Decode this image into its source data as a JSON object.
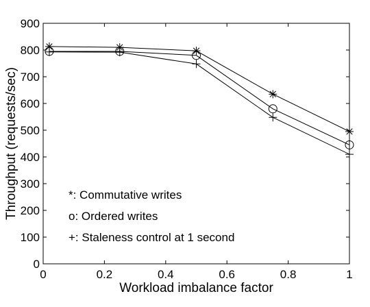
{
  "chart_data": {
    "type": "line",
    "title": "",
    "xlabel": "Workload imbalance factor",
    "ylabel": "Throughput (requests/sec)",
    "xlim": [
      0,
      1
    ],
    "ylim": [
      0,
      900
    ],
    "xticks": [
      0,
      0.2,
      0.4,
      0.6,
      0.8,
      1
    ],
    "xtick_labels": [
      "0",
      "0.2",
      "0.4",
      "0.6",
      "0.8",
      "1"
    ],
    "yticks": [
      0,
      100,
      200,
      300,
      400,
      500,
      600,
      700,
      800,
      900
    ],
    "ytick_labels": [
      "0",
      "100",
      "200",
      "300",
      "400",
      "500",
      "600",
      "700",
      "800",
      "900"
    ],
    "grid": false,
    "legend_placement": "lower-left",
    "line_color": "#000000",
    "series": [
      {
        "name": "Commutative writes",
        "marker": "*",
        "legend": "*: Commutative writes",
        "x": [
          0.02,
          0.25,
          0.5,
          0.75,
          1.0
        ],
        "y": [
          813,
          810,
          797,
          635,
          495
        ]
      },
      {
        "name": "Ordered writes",
        "marker": "o",
        "legend": "o: Ordered writes",
        "x": [
          0.02,
          0.25,
          0.5,
          0.75,
          1.0
        ],
        "y": [
          795,
          795,
          780,
          580,
          445
        ]
      },
      {
        "name": "Staleness control at 1 second",
        "marker": "+",
        "legend": "+: Staleness control at 1 second",
        "x": [
          0.02,
          0.25,
          0.5,
          0.75,
          1.0
        ],
        "y": [
          793,
          792,
          748,
          548,
          410
        ]
      }
    ]
  }
}
